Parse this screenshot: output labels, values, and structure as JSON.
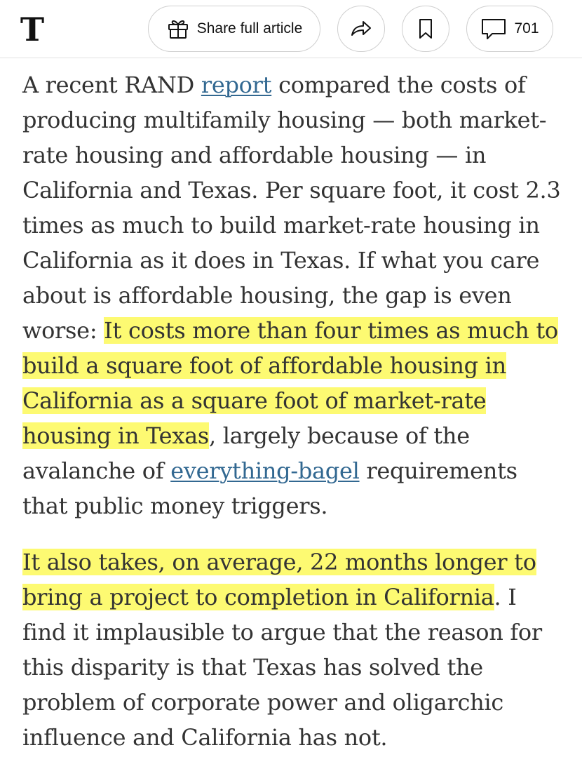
{
  "header": {
    "logo": "T",
    "share_label": "Share full article",
    "comment_count": "701",
    "icons": {
      "share": "gift-icon",
      "forward": "forward-arrow-icon",
      "save": "bookmark-icon",
      "comments": "speech-bubble-icon"
    }
  },
  "article": {
    "p1": {
      "t1": "A recent RAND ",
      "link1": "report",
      "t2": " compared the costs of producing multifamily housing — both market-rate housing and affordable housing — in California and Texas. Per square foot, it cost 2.3 times as much to build market-rate housing in California as it does in Texas. If what you care about is affordable housing, the gap is even worse: ",
      "highlight1": "It costs more than four times as much to build a square foot of affordable housing in California as a square foot of market-rate housing in Texas",
      "t3": ", largely because of the avalanche of ",
      "link2": "everything-bagel",
      "t4": " requirements that public money triggers."
    },
    "p2": {
      "highlight1": "It also takes, on average, 22 months longer to bring a project to completion in California",
      "t1": ". I find it implausible to argue that the reason for this disparity is that Texas has solved the problem of corporate power and oligarchic influence and California has not."
    }
  },
  "colors": {
    "highlight": "#fdfa72",
    "link": "#326891",
    "text": "#333333"
  }
}
